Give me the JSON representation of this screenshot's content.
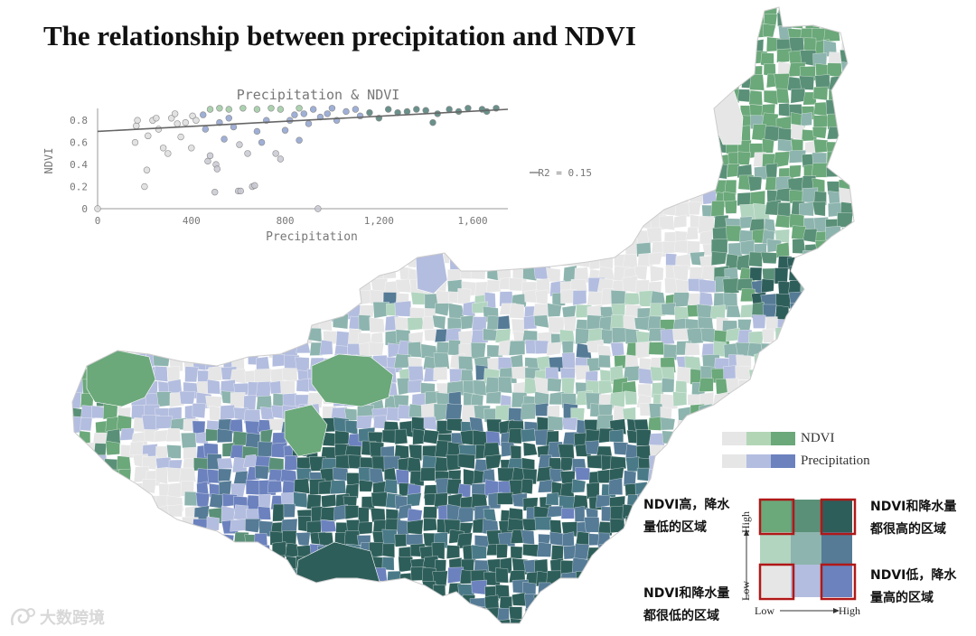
{
  "title": "The relationship between precipitation and NDVI",
  "chart_data": {
    "type": "scatter",
    "title": "Precipitation & NDVI",
    "xlabel": "Precipitation",
    "ylabel": "NDVI",
    "xlim": [
      0,
      1750
    ],
    "ylim": [
      0,
      0.9
    ],
    "x_ticks": [
      "0",
      "400",
      "800",
      "1,200",
      "1,600"
    ],
    "y_ticks": [
      "0",
      "0.2",
      "0.4",
      "0.6",
      "0.8"
    ],
    "trendline": {
      "x": [
        0,
        1750
      ],
      "y": [
        0.7,
        0.9
      ]
    },
    "r2_label": "R2 = 0.15",
    "points": [
      [
        0,
        0
      ],
      [
        940,
        0
      ],
      [
        160,
        0.6
      ],
      [
        165,
        0.75
      ],
      [
        170,
        0.8
      ],
      [
        200,
        0.2
      ],
      [
        210,
        0.35
      ],
      [
        215,
        0.66
      ],
      [
        235,
        0.8
      ],
      [
        250,
        0.82
      ],
      [
        260,
        0.72
      ],
      [
        280,
        0.55
      ],
      [
        300,
        0.5
      ],
      [
        315,
        0.82
      ],
      [
        330,
        0.86
      ],
      [
        340,
        0.77
      ],
      [
        355,
        0.65
      ],
      [
        375,
        0.78
      ],
      [
        400,
        0.55
      ],
      [
        405,
        0.84
      ],
      [
        420,
        0.8
      ],
      [
        450,
        0.85
      ],
      [
        460,
        0.72
      ],
      [
        470,
        0.43
      ],
      [
        480,
        0.48
      ],
      [
        500,
        0.15
      ],
      [
        505,
        0.4
      ],
      [
        510,
        0.36
      ],
      [
        520,
        0.78
      ],
      [
        540,
        0.63
      ],
      [
        560,
        0.82
      ],
      [
        580,
        0.74
      ],
      [
        600,
        0.16
      ],
      [
        605,
        0.58
      ],
      [
        610,
        0.16
      ],
      [
        640,
        0.5
      ],
      [
        660,
        0.2
      ],
      [
        670,
        0.21
      ],
      [
        680,
        0.7
      ],
      [
        700,
        0.6
      ],
      [
        720,
        0.8
      ],
      [
        760,
        0.5
      ],
      [
        780,
        0.45
      ],
      [
        800,
        0.71
      ],
      [
        820,
        0.8
      ],
      [
        840,
        0.85
      ],
      [
        860,
        0.62
      ],
      [
        880,
        0.86
      ],
      [
        900,
        0.77
      ],
      [
        950,
        0.83
      ],
      [
        980,
        0.86
      ],
      [
        1020,
        0.8
      ],
      [
        1060,
        0.88
      ],
      [
        1100,
        0.9
      ],
      [
        1120,
        0.84
      ],
      [
        1160,
        0.87
      ],
      [
        1200,
        0.82
      ],
      [
        1240,
        0.9
      ],
      [
        1280,
        0.87
      ],
      [
        1320,
        0.88
      ],
      [
        1360,
        0.9
      ],
      [
        1400,
        0.89
      ],
      [
        1430,
        0.78
      ],
      [
        1450,
        0.86
      ],
      [
        1500,
        0.9
      ],
      [
        1540,
        0.88
      ],
      [
        1580,
        0.91
      ],
      [
        1640,
        0.9
      ],
      [
        1700,
        0.91
      ],
      [
        1660,
        0.88
      ],
      [
        480,
        0.9
      ],
      [
        520,
        0.91
      ],
      [
        560,
        0.9
      ],
      [
        620,
        0.91
      ],
      [
        680,
        0.9
      ],
      [
        740,
        0.91
      ],
      [
        780,
        0.9
      ],
      [
        860,
        0.91
      ],
      [
        920,
        0.9
      ],
      [
        1000,
        0.91
      ]
    ]
  },
  "legend": {
    "ndvi_label": "NDVI",
    "precip_label": "Precipitation",
    "ndvi_colors": [
      "#e6e6e6",
      "#b2d6b5",
      "#6ba87a"
    ],
    "precip_colors": [
      "#e6e6e6",
      "#b3bde0",
      "#6c82be"
    ]
  },
  "bivariate": {
    "matrix": [
      [
        "#6ba87a",
        "#5a9078",
        "#2e5e5a"
      ],
      [
        "#b2d5c0",
        "#8db4ae",
        "#557b96"
      ],
      [
        "#e6e6e6",
        "#b3bddf",
        "#6c82be"
      ]
    ],
    "y_high": "High",
    "y_low": "Low",
    "x_low": "Low",
    "x_high": "High"
  },
  "annotations": {
    "top_left": [
      "NDVI高，降水",
      "量低的区域"
    ],
    "top_right": [
      "NDVI和降水量",
      "都很高的区域"
    ],
    "bottom_left": [
      "NDVI和降水量",
      "都很低的区域"
    ],
    "bottom_right": [
      "NDVI低，降水",
      "量高的区域"
    ]
  },
  "watermark": "大数跨境",
  "map_colors": [
    "#e6e6e6",
    "#b2d5c0",
    "#6ba87a",
    "#5a9078",
    "#8db4ae",
    "#b3bddf",
    "#6c82be",
    "#557b96",
    "#2e5e5a",
    "#4a7a88"
  ]
}
